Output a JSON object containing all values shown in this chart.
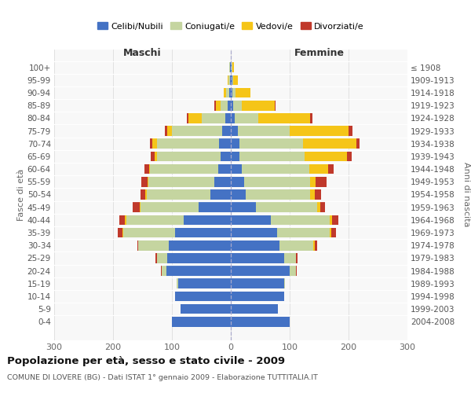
{
  "age_groups": [
    "100+",
    "95-99",
    "90-94",
    "85-89",
    "80-84",
    "75-79",
    "70-74",
    "65-69",
    "60-64",
    "55-59",
    "50-54",
    "45-49",
    "40-44",
    "35-39",
    "30-34",
    "25-29",
    "20-24",
    "15-19",
    "10-14",
    "5-9",
    "0-4"
  ],
  "birth_years": [
    "≤ 1908",
    "1909-1913",
    "1914-1918",
    "1919-1923",
    "1924-1928",
    "1929-1933",
    "1934-1938",
    "1939-1943",
    "1944-1948",
    "1949-1953",
    "1954-1958",
    "1959-1963",
    "1964-1968",
    "1969-1973",
    "1974-1978",
    "1979-1983",
    "1984-1988",
    "1989-1993",
    "1994-1998",
    "1999-2003",
    "2004-2008"
  ],
  "male_celibi": [
    2,
    2,
    3,
    5,
    10,
    15,
    20,
    18,
    22,
    28,
    35,
    55,
    80,
    95,
    105,
    108,
    110,
    90,
    95,
    85,
    100
  ],
  "male_coniugati": [
    1,
    2,
    5,
    12,
    40,
    85,
    105,
    108,
    115,
    112,
    108,
    98,
    98,
    88,
    52,
    18,
    8,
    2,
    0,
    0,
    0
  ],
  "male_vedovi": [
    0,
    1,
    4,
    8,
    22,
    8,
    8,
    4,
    2,
    2,
    2,
    2,
    2,
    1,
    0,
    0,
    0,
    0,
    0,
    0,
    0
  ],
  "male_divorziati": [
    0,
    0,
    0,
    3,
    3,
    4,
    4,
    6,
    8,
    10,
    8,
    12,
    10,
    8,
    2,
    2,
    1,
    0,
    0,
    0,
    0
  ],
  "female_nubili": [
    1,
    2,
    2,
    4,
    6,
    12,
    15,
    15,
    18,
    22,
    25,
    42,
    68,
    78,
    82,
    90,
    100,
    90,
    90,
    80,
    100
  ],
  "female_coniugate": [
    1,
    2,
    6,
    15,
    40,
    88,
    108,
    110,
    115,
    112,
    110,
    105,
    100,
    90,
    58,
    20,
    10,
    2,
    0,
    0,
    0
  ],
  "female_vedove": [
    3,
    8,
    25,
    55,
    88,
    100,
    90,
    72,
    32,
    10,
    8,
    5,
    4,
    2,
    2,
    1,
    0,
    0,
    0,
    0,
    0
  ],
  "female_divorziate": [
    0,
    0,
    0,
    2,
    4,
    6,
    6,
    8,
    10,
    18,
    10,
    8,
    10,
    8,
    4,
    2,
    2,
    0,
    0,
    0,
    0
  ],
  "color_celibi": "#4472C4",
  "color_coniugati": "#C5D5A0",
  "color_vedovi": "#F5C518",
  "color_divorziati": "#C0392B",
  "title": "Popolazione per età, sesso e stato civile - 2009",
  "subtitle": "COMUNE DI LOVERE (BG) - Dati ISTAT 1° gennaio 2009 - Elaborazione TUTTITALIA.IT",
  "legend_labels": [
    "Celibi/Nubili",
    "Coniugati/e",
    "Vedovi/e",
    "Divorziati/e"
  ],
  "ylabel_left": "Fasce di età",
  "ylabel_right": "Anni di nascita",
  "maschi_label": "Maschi",
  "femmine_label": "Femmine",
  "xlim": 300,
  "bg_color": "#FFFFFF",
  "plot_bg_color": "#F8F8F8"
}
